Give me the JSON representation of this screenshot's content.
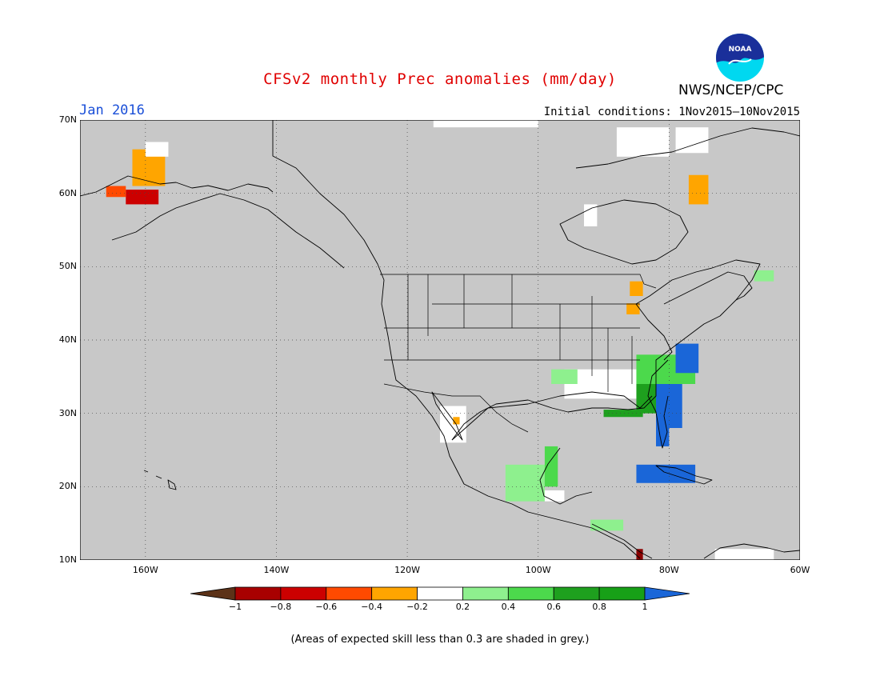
{
  "title": "CFSv2 monthly Prec anomalies (mm/day)",
  "target_month": "Jan 2016",
  "initial_conditions": "Initial conditions: 1Nov2015–10Nov2015",
  "agency": "NWS/NCEP/CPC",
  "logo_text": "NOAA",
  "note": "(Areas of expected skill less than 0.3 are shaded in grey.)",
  "map": {
    "lon_range": [
      -170,
      -60
    ],
    "lat_range": [
      10,
      70
    ],
    "background_color": "#c8c8c8",
    "lat_ticks": [
      {
        "value": 70,
        "label": "70N"
      },
      {
        "value": 60,
        "label": "60N"
      },
      {
        "value": 50,
        "label": "50N"
      },
      {
        "value": 40,
        "label": "40N"
      },
      {
        "value": 30,
        "label": "30N"
      },
      {
        "value": 20,
        "label": "20N"
      },
      {
        "value": 10,
        "label": "10N"
      }
    ],
    "lon_ticks": [
      {
        "value": -160,
        "label": "160W"
      },
      {
        "value": -140,
        "label": "140W"
      },
      {
        "value": -120,
        "label": "120W"
      },
      {
        "value": -100,
        "label": "100W"
      },
      {
        "value": -80,
        "label": "80W"
      },
      {
        "value": -60,
        "label": "60W"
      }
    ],
    "anomaly_regions": [
      {
        "name": "alaska-west",
        "lon": [
          -162,
          -157
        ],
        "lat": [
          61,
          66
        ],
        "color": "#ffa500"
      },
      {
        "name": "alaska-west-white",
        "lon": [
          -160,
          -156.5
        ],
        "lat": [
          65,
          67
        ],
        "color": "#ffffff"
      },
      {
        "name": "alaska-sw",
        "lon": [
          -163,
          -158
        ],
        "lat": [
          58.5,
          60.5
        ],
        "color": "#cc0000"
      },
      {
        "name": "alaska-sw2",
        "lon": [
          -166,
          -163
        ],
        "lat": [
          59.5,
          61
        ],
        "color": "#ff4a00"
      },
      {
        "name": "quebec-labrador",
        "lon": [
          -77,
          -74
        ],
        "lat": [
          58.5,
          62.5
        ],
        "color": "#ffa500"
      },
      {
        "name": "hudson-white",
        "lon": [
          -93,
          -91
        ],
        "lat": [
          55.5,
          58.5
        ],
        "color": "#ffffff"
      },
      {
        "name": "arctic-white-1",
        "lon": [
          -116,
          -100
        ],
        "lat": [
          69,
          70
        ],
        "color": "#ffffff"
      },
      {
        "name": "arctic-white-2",
        "lon": [
          -88,
          -80
        ],
        "lat": [
          65,
          69
        ],
        "color": "#ffffff"
      },
      {
        "name": "arctic-white-3",
        "lon": [
          -79,
          -74
        ],
        "lat": [
          65.5,
          69
        ],
        "color": "#ffffff"
      },
      {
        "name": "great-lakes",
        "lon": [
          -86,
          -84
        ],
        "lat": [
          46,
          48
        ],
        "color": "#ffa500"
      },
      {
        "name": "great-lakes-2",
        "lon": [
          -86.5,
          -84.5
        ],
        "lat": [
          43.5,
          45
        ],
        "color": "#ffa500"
      },
      {
        "name": "newfoundland-green",
        "lon": [
          -67,
          -64
        ],
        "lat": [
          48,
          49.5
        ],
        "color": "#8ef08e"
      },
      {
        "name": "southcentral-white",
        "lon": [
          -96,
          -82
        ],
        "lat": [
          32,
          36
        ],
        "color": "#ffffff"
      },
      {
        "name": "southcentral-lightgreen",
        "lon": [
          -98,
          -94
        ],
        "lat": [
          34,
          36
        ],
        "color": "#8ef08e"
      },
      {
        "name": "southeast-green",
        "lon": [
          -85,
          -76
        ],
        "lat": [
          34,
          38
        ],
        "color": "#4cd94c"
      },
      {
        "name": "southeast-darkgreen",
        "lon": [
          -85,
          -80
        ],
        "lat": [
          30,
          34
        ],
        "color": "#1ea01e"
      },
      {
        "name": "gulf-darkgreen",
        "lon": [
          -90,
          -84
        ],
        "lat": [
          29.5,
          30.5
        ],
        "color": "#1ea01e"
      },
      {
        "name": "southeast-blue",
        "lon": [
          -82,
          -78
        ],
        "lat": [
          28,
          34
        ],
        "color": "#1a66d8"
      },
      {
        "name": "florida-blue",
        "lon": [
          -82,
          -80
        ],
        "lat": [
          25.5,
          29
        ],
        "color": "#1a66d8"
      },
      {
        "name": "midatlantic-blue",
        "lon": [
          -79,
          -75.5
        ],
        "lat": [
          35.5,
          39.5
        ],
        "color": "#1a66d8"
      },
      {
        "name": "cuba-blue",
        "lon": [
          -85,
          -76
        ],
        "lat": [
          20.5,
          23
        ],
        "color": "#1a66d8"
      },
      {
        "name": "mexico-lightgreen",
        "lon": [
          -105,
          -99
        ],
        "lat": [
          18,
          23
        ],
        "color": "#8ef08e"
      },
      {
        "name": "mexico-green",
        "lon": [
          -99,
          -97
        ],
        "lat": [
          20,
          25.5
        ],
        "color": "#4cd94c"
      },
      {
        "name": "mexico-white",
        "lon": [
          -99,
          -96
        ],
        "lat": [
          18,
          19.5
        ],
        "color": "#ffffff"
      },
      {
        "name": "centralamerica-lightgreen",
        "lon": [
          -92,
          -87
        ],
        "lat": [
          14,
          15.5
        ],
        "color": "#8ef08e"
      },
      {
        "name": "centralamerica-brown",
        "lon": [
          -85,
          -84
        ],
        "lat": [
          10,
          11.5
        ],
        "color": "#8b0000"
      },
      {
        "name": "baja-white",
        "lon": [
          -115,
          -111
        ],
        "lat": [
          26,
          31
        ],
        "color": "#ffffff"
      },
      {
        "name": "baja-orange",
        "lon": [
          -113,
          -112
        ],
        "lat": [
          28.5,
          29.5
        ],
        "color": "#ffa500"
      },
      {
        "name": "caribbean-white",
        "lon": [
          -73,
          -64
        ],
        "lat": [
          10,
          11.5
        ],
        "color": "#ffffff"
      }
    ]
  },
  "colorbar": {
    "colors": [
      "#5c3218",
      "#a80000",
      "#cc0000",
      "#ff4a00",
      "#ffa500",
      "#ffffff",
      "#8ef08e",
      "#4cd94c",
      "#1ea01e",
      "#17a017",
      "#1a66d8"
    ],
    "labels": [
      "−1",
      "−0.8",
      "−0.6",
      "−0.4",
      "−0.2",
      "0.2",
      "0.4",
      "0.6",
      "0.8",
      "1"
    ]
  }
}
